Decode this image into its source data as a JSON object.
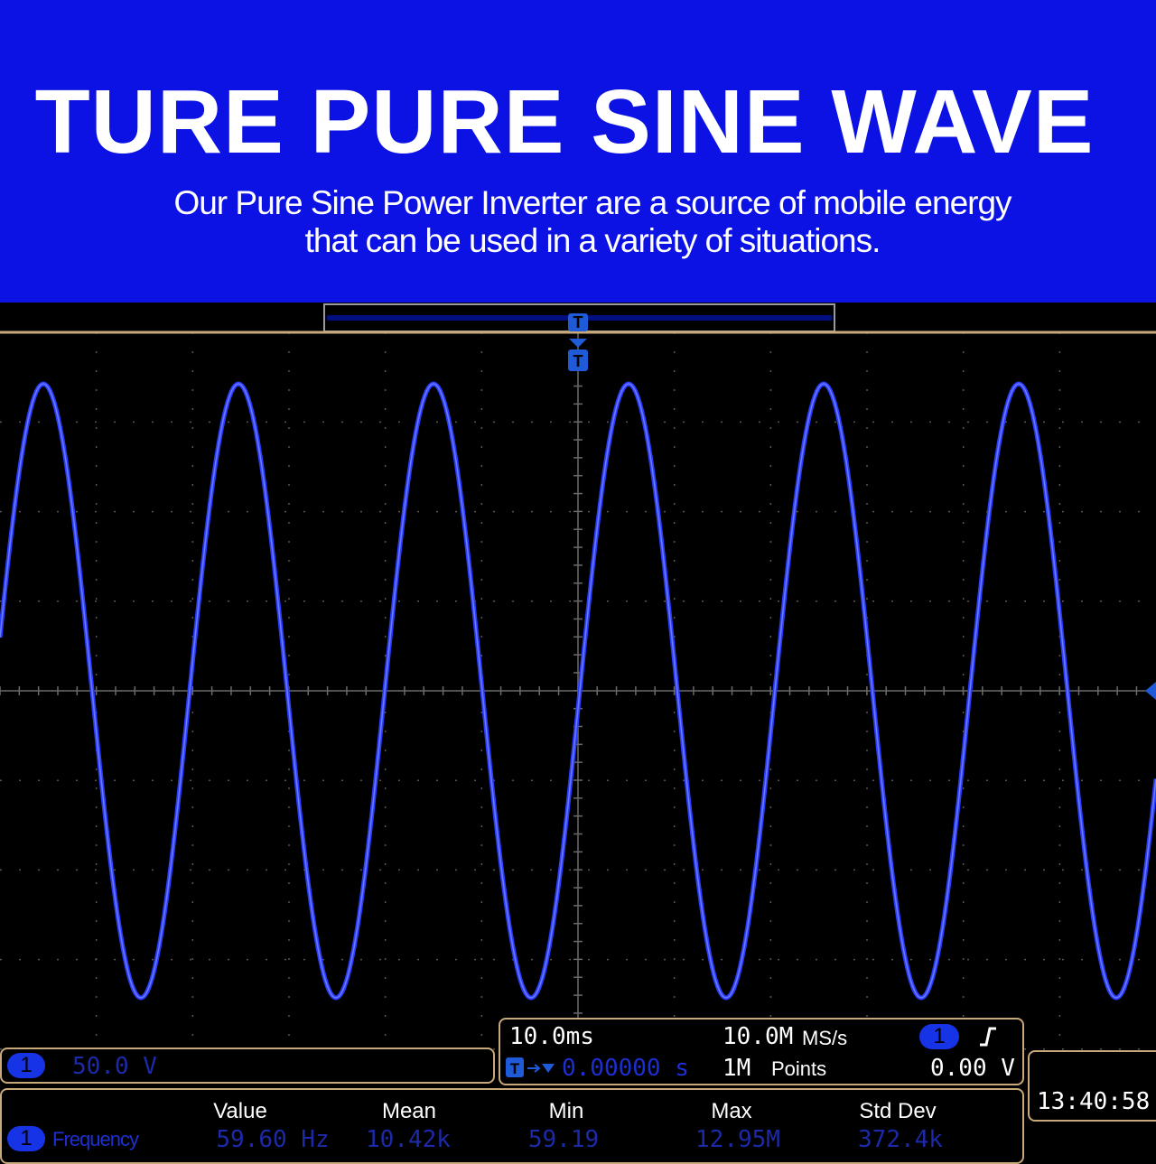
{
  "header": {
    "title": "TURE PURE SINE WAVE",
    "subtitle": [
      "Our Pure Sine Power Inverter are a source of mobile energy",
      "that can be used in a variety of situations."
    ]
  },
  "scope": {
    "trigger_marker": "T",
    "timebase": "10.0ms",
    "sample_rate": "10.0M",
    "sample_rate_unit": "MS/s",
    "trigger_channel": "1",
    "trigger_level": "0.00 V",
    "trigger_position": "0.00000 s",
    "record_length": "1M",
    "record_length_unit": "Points",
    "channel": {
      "number": "1",
      "scale": "50.0 V"
    },
    "clock": "13:40:58"
  },
  "measurements": {
    "headers": [
      "Value",
      "Mean",
      "Min",
      "Max",
      "Std Dev"
    ],
    "rows": [
      {
        "channel": "1",
        "name": "Frequency",
        "values": [
          "59.60 Hz",
          "10.42k",
          "59.19",
          "12.95M",
          "372.4k"
        ]
      }
    ]
  }
}
